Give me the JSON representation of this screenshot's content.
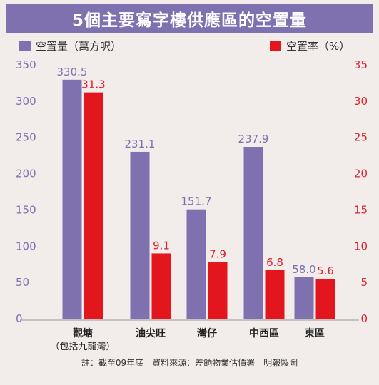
{
  "title": "5個主要寫字樓供應區的空置量",
  "footnote": "註：截至09年底　資料來源：差餉物業估價署　明報製圖",
  "colors": {
    "area": "#7f71b0",
    "rate": "#e3161d",
    "title_bg": "#7f71b0"
  },
  "chart_data": {
    "type": "bar",
    "categories": [
      "觀塘",
      "油尖旺",
      "灣仔",
      "中西區",
      "東區"
    ],
    "category_sublabels": [
      "（包括九龍灣）",
      "",
      "",
      "",
      ""
    ],
    "series": [
      {
        "name": "空置量（萬方呎）",
        "axis": "left",
        "values": [
          330.5,
          231.1,
          151.7,
          237.9,
          58.0
        ],
        "labels": [
          "330.5",
          "231.1",
          "151.7",
          "237.9",
          "58.0"
        ]
      },
      {
        "name": "空置率（%）",
        "axis": "right",
        "values": [
          31.3,
          9.1,
          7.9,
          6.8,
          5.6
        ],
        "labels": [
          "31.3",
          "9.1",
          "7.9",
          "6.8",
          "5.6"
        ]
      }
    ],
    "y_left": {
      "min": 0,
      "max": 350,
      "ticks": [
        0,
        50,
        100,
        150,
        200,
        250,
        300,
        350
      ]
    },
    "y_right": {
      "min": 0,
      "max": 35,
      "ticks": [
        0,
        5,
        10,
        15,
        20,
        25,
        30,
        35
      ]
    },
    "legend_position": "top",
    "grid": false
  }
}
